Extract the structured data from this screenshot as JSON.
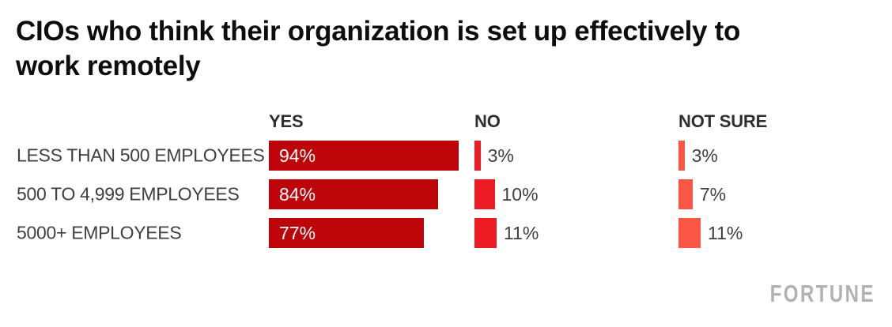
{
  "title": "CIOs who think their organization is set up effectively to work remotely",
  "brand": {
    "logo_text": "FORTUNE",
    "logo_color": "#b2b2b2"
  },
  "colors": {
    "yes_bar": "#bd0409",
    "no_bar": "#ec1c24",
    "not_sure_bar": "#fa5646",
    "title_text": "#0d0d0d",
    "header_text": "#2f2f2f",
    "label_text": "#3f3f3f",
    "background": "#ffffff"
  },
  "chart_data": {
    "type": "bar",
    "orientation": "horizontal",
    "title": "CIOs who think their organization is set up effectively to work remotely",
    "categories": [
      "LESS THAN 500 EMPLOYEES",
      "500 TO 4,999 EMPLOYEES",
      "5000+ EMPLOYEES"
    ],
    "series": [
      {
        "name": "YES",
        "values": [
          94,
          84,
          77
        ],
        "color": "#bd0409",
        "label_position": "inside"
      },
      {
        "name": "NO",
        "values": [
          3,
          10,
          11
        ],
        "color": "#ec1c24",
        "label_position": "outside"
      },
      {
        "name": "NOT SURE",
        "values": [
          3,
          7,
          11
        ],
        "color": "#fa5646",
        "label_position": "outside"
      }
    ],
    "value_suffix": "%",
    "xlim": [
      0,
      100
    ],
    "grid": false,
    "legend_position": "column-headers"
  }
}
